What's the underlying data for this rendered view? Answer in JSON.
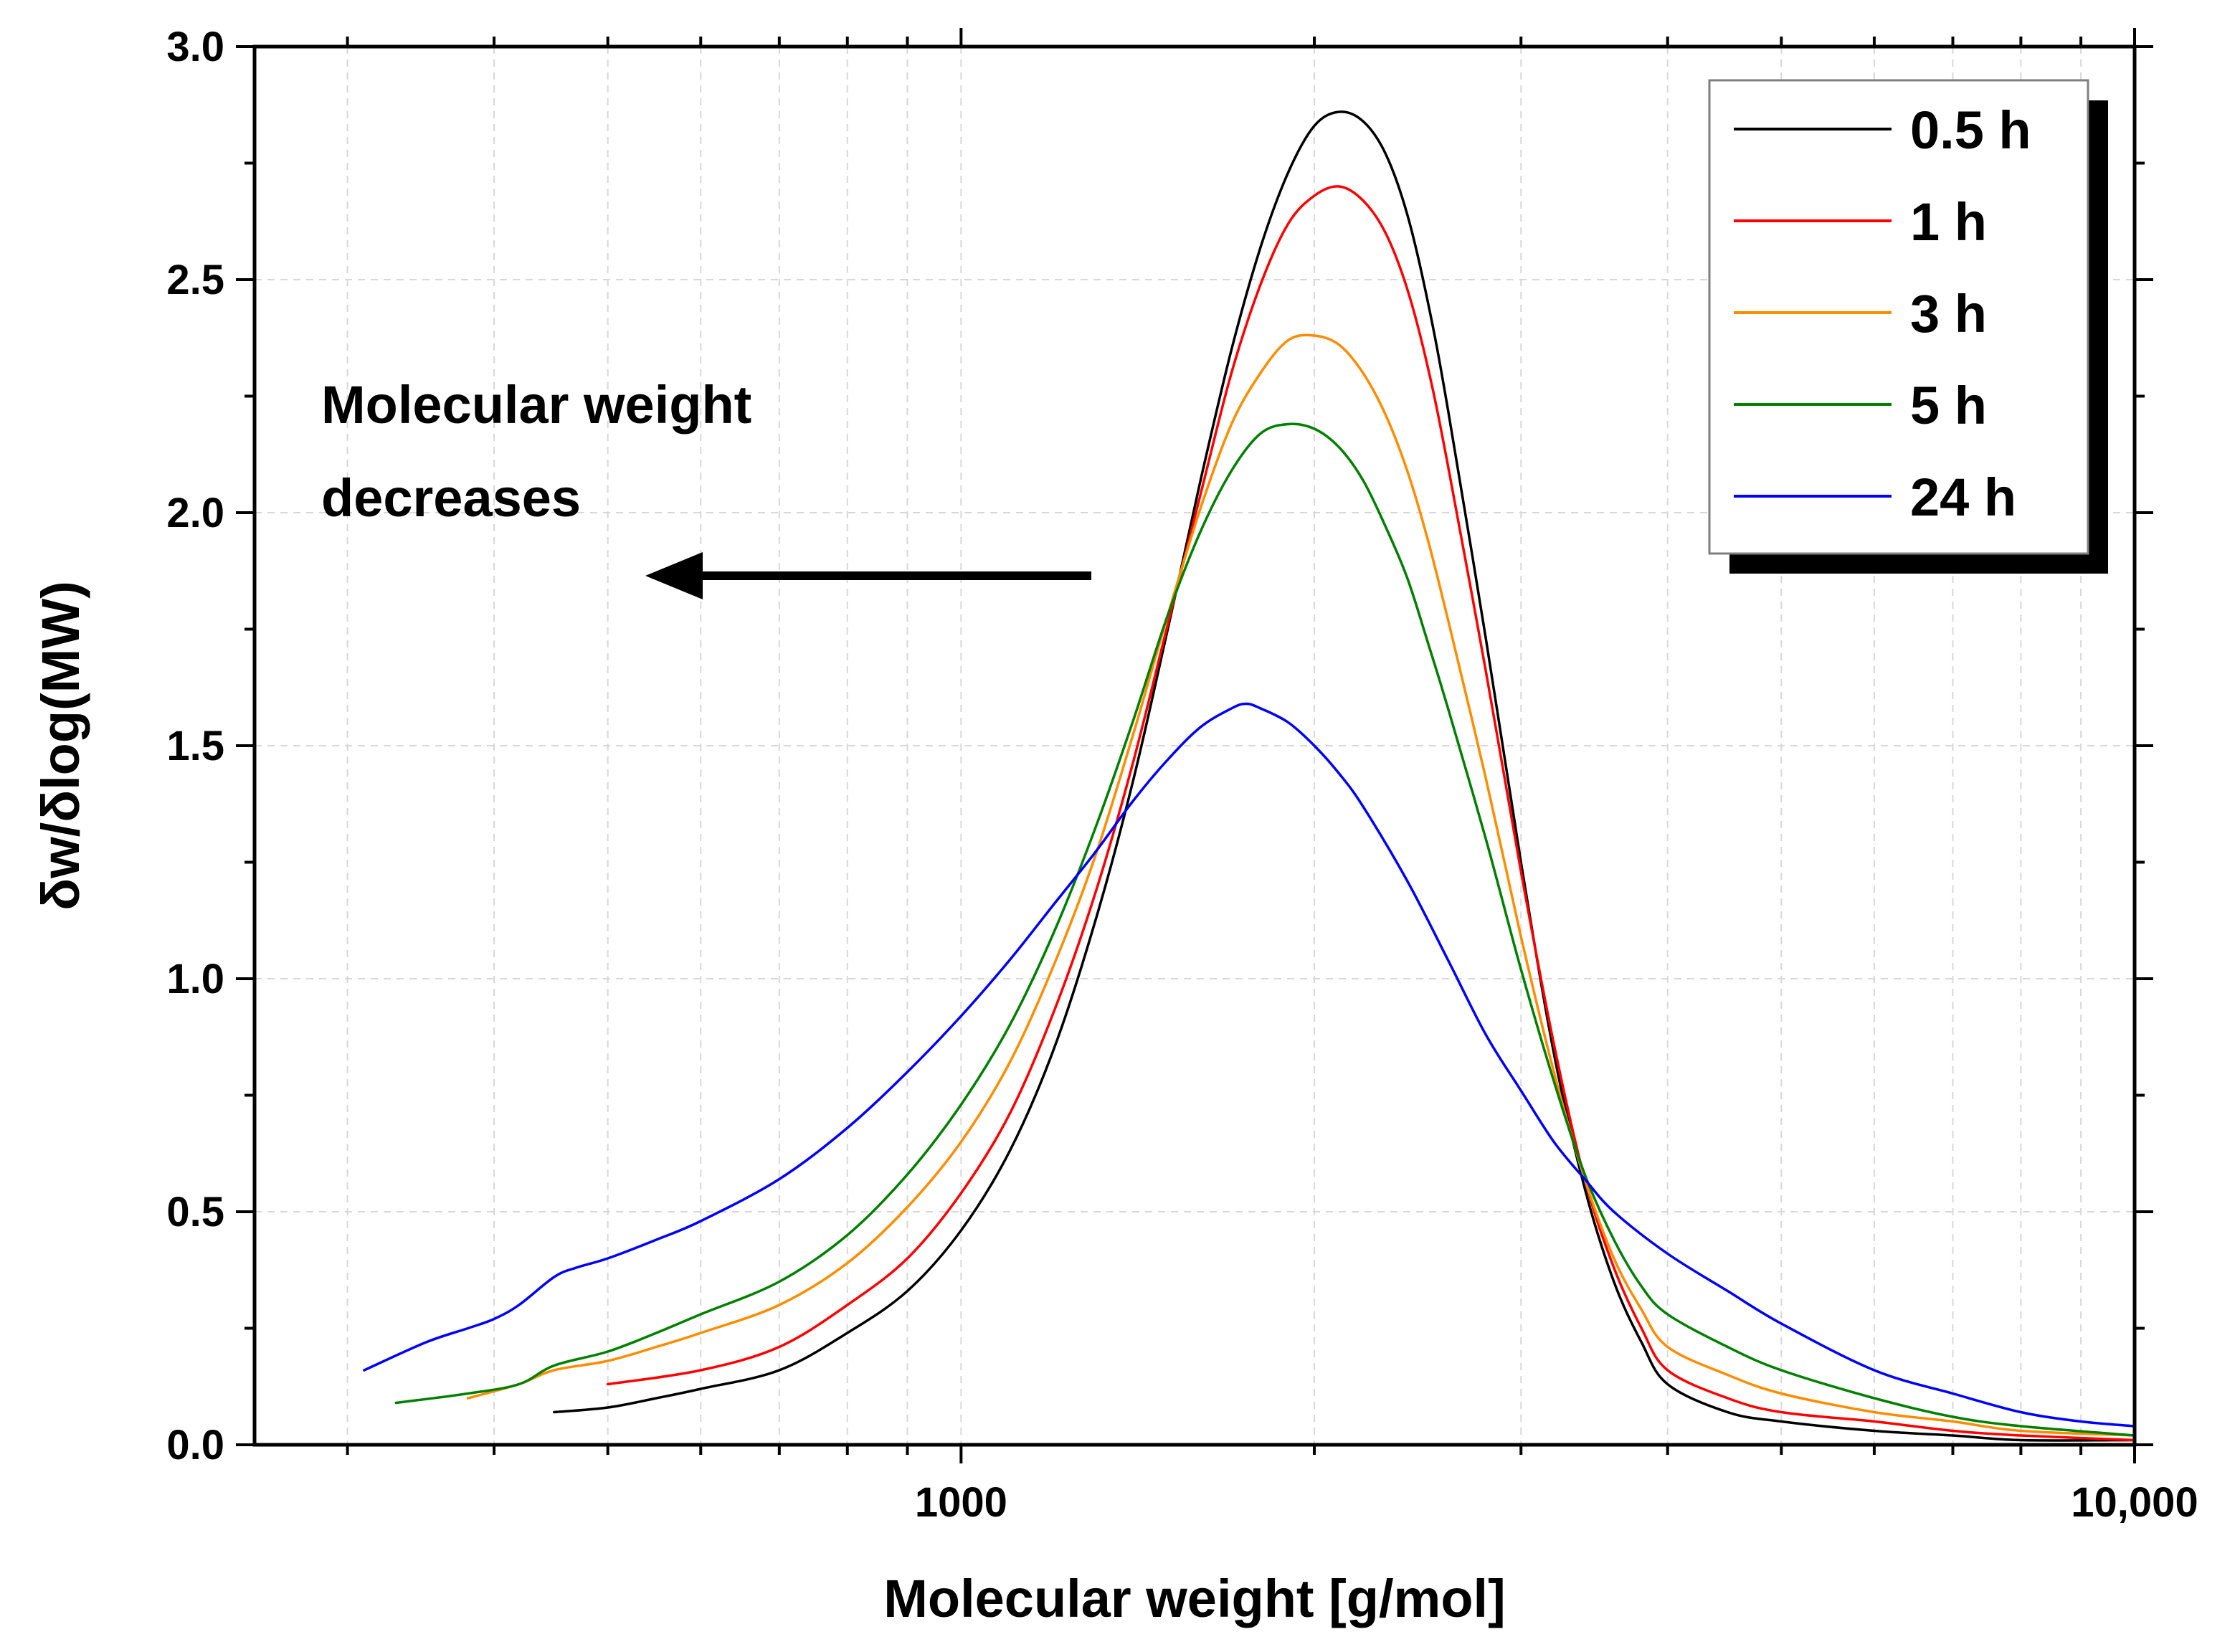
{
  "chart_data": {
    "type": "line",
    "xlabel": "Molecular weight [g/mol]",
    "ylabel": "δw/δlog(MW)",
    "x_scale": "log",
    "xlim": [
      250,
      10000
    ],
    "ylim": [
      0,
      3.0
    ],
    "x_tick_labels": [
      {
        "value": 1000,
        "label": "1000"
      },
      {
        "value": 10000,
        "label": "10,000"
      }
    ],
    "y_ticks": [
      {
        "value": 0.0,
        "label": "0.0"
      },
      {
        "value": 0.5,
        "label": "0.5"
      },
      {
        "value": 1.0,
        "label": "1.0"
      },
      {
        "value": 1.5,
        "label": "1.5"
      },
      {
        "value": 2.0,
        "label": "2.0"
      },
      {
        "value": 2.5,
        "label": "2.5"
      },
      {
        "value": 3.0,
        "label": "3.0"
      }
    ],
    "grid": true,
    "legend_position": "top-right",
    "annotation": {
      "lines": [
        "Molecular weight",
        "decreases"
      ],
      "arrow_direction": "left"
    },
    "series": [
      {
        "name": "0.5 h",
        "color": "#000000",
        "points": [
          [
            450,
            0.07
          ],
          [
            500,
            0.08
          ],
          [
            550,
            0.1
          ],
          [
            600,
            0.12
          ],
          [
            700,
            0.16
          ],
          [
            800,
            0.24
          ],
          [
            900,
            0.33
          ],
          [
            1000,
            0.46
          ],
          [
            1100,
            0.63
          ],
          [
            1200,
            0.85
          ],
          [
            1300,
            1.12
          ],
          [
            1400,
            1.42
          ],
          [
            1500,
            1.75
          ],
          [
            1600,
            2.07
          ],
          [
            1700,
            2.35
          ],
          [
            1800,
            2.57
          ],
          [
            1900,
            2.73
          ],
          [
            2000,
            2.83
          ],
          [
            2100,
            2.86
          ],
          [
            2200,
            2.84
          ],
          [
            2300,
            2.77
          ],
          [
            2400,
            2.64
          ],
          [
            2500,
            2.45
          ],
          [
            2600,
            2.22
          ],
          [
            2800,
            1.73
          ],
          [
            3000,
            1.25
          ],
          [
            3200,
            0.84
          ],
          [
            3400,
            0.55
          ],
          [
            3600,
            0.35
          ],
          [
            3800,
            0.22
          ],
          [
            4000,
            0.13
          ],
          [
            4500,
            0.07
          ],
          [
            5000,
            0.05
          ],
          [
            6000,
            0.03
          ],
          [
            7000,
            0.02
          ],
          [
            8000,
            0.01
          ],
          [
            10000,
            0.01
          ]
        ]
      },
      {
        "name": "1 h",
        "color": "#ff0000",
        "points": [
          [
            500,
            0.13
          ],
          [
            600,
            0.16
          ],
          [
            700,
            0.21
          ],
          [
            800,
            0.3
          ],
          [
            900,
            0.4
          ],
          [
            1000,
            0.54
          ],
          [
            1100,
            0.71
          ],
          [
            1200,
            0.93
          ],
          [
            1300,
            1.18
          ],
          [
            1400,
            1.46
          ],
          [
            1500,
            1.76
          ],
          [
            1600,
            2.04
          ],
          [
            1700,
            2.3
          ],
          [
            1800,
            2.49
          ],
          [
            1900,
            2.62
          ],
          [
            2000,
            2.68
          ],
          [
            2100,
            2.7
          ],
          [
            2200,
            2.67
          ],
          [
            2300,
            2.6
          ],
          [
            2400,
            2.48
          ],
          [
            2500,
            2.31
          ],
          [
            2600,
            2.1
          ],
          [
            2800,
            1.66
          ],
          [
            3000,
            1.23
          ],
          [
            3200,
            0.86
          ],
          [
            3400,
            0.57
          ],
          [
            3600,
            0.38
          ],
          [
            3800,
            0.25
          ],
          [
            4000,
            0.16
          ],
          [
            4500,
            0.1
          ],
          [
            5000,
            0.07
          ],
          [
            6000,
            0.05
          ],
          [
            7000,
            0.03
          ],
          [
            8000,
            0.02
          ],
          [
            10000,
            0.01
          ]
        ]
      },
      {
        "name": "3 h",
        "color": "#ff8c00",
        "points": [
          [
            380,
            0.1
          ],
          [
            420,
            0.13
          ],
          [
            450,
            0.16
          ],
          [
            500,
            0.18
          ],
          [
            550,
            0.21
          ],
          [
            600,
            0.24
          ],
          [
            700,
            0.3
          ],
          [
            800,
            0.39
          ],
          [
            900,
            0.51
          ],
          [
            1000,
            0.65
          ],
          [
            1100,
            0.82
          ],
          [
            1200,
            1.03
          ],
          [
            1300,
            1.26
          ],
          [
            1400,
            1.52
          ],
          [
            1500,
            1.78
          ],
          [
            1600,
            2.01
          ],
          [
            1700,
            2.19
          ],
          [
            1800,
            2.3
          ],
          [
            1900,
            2.37
          ],
          [
            2000,
            2.38
          ],
          [
            2100,
            2.36
          ],
          [
            2200,
            2.3
          ],
          [
            2300,
            2.21
          ],
          [
            2400,
            2.09
          ],
          [
            2500,
            1.94
          ],
          [
            2600,
            1.77
          ],
          [
            2800,
            1.43
          ],
          [
            3000,
            1.09
          ],
          [
            3200,
            0.8
          ],
          [
            3400,
            0.57
          ],
          [
            3600,
            0.4
          ],
          [
            3800,
            0.29
          ],
          [
            4000,
            0.21
          ],
          [
            4500,
            0.15
          ],
          [
            5000,
            0.11
          ],
          [
            6000,
            0.07
          ],
          [
            7000,
            0.05
          ],
          [
            8000,
            0.03
          ],
          [
            10000,
            0.02
          ]
        ]
      },
      {
        "name": "5 h",
        "color": "#008000",
        "points": [
          [
            330,
            0.09
          ],
          [
            380,
            0.11
          ],
          [
            420,
            0.13
          ],
          [
            450,
            0.17
          ],
          [
            500,
            0.2
          ],
          [
            550,
            0.24
          ],
          [
            600,
            0.28
          ],
          [
            700,
            0.35
          ],
          [
            800,
            0.45
          ],
          [
            900,
            0.58
          ],
          [
            1000,
            0.73
          ],
          [
            1100,
            0.9
          ],
          [
            1200,
            1.1
          ],
          [
            1300,
            1.32
          ],
          [
            1400,
            1.55
          ],
          [
            1500,
            1.78
          ],
          [
            1600,
            1.96
          ],
          [
            1700,
            2.09
          ],
          [
            1800,
            2.17
          ],
          [
            1900,
            2.19
          ],
          [
            2000,
            2.18
          ],
          [
            2100,
            2.14
          ],
          [
            2200,
            2.07
          ],
          [
            2300,
            1.97
          ],
          [
            2400,
            1.86
          ],
          [
            2500,
            1.72
          ],
          [
            2600,
            1.58
          ],
          [
            2800,
            1.3
          ],
          [
            3000,
            1.02
          ],
          [
            3200,
            0.78
          ],
          [
            3400,
            0.58
          ],
          [
            3600,
            0.44
          ],
          [
            3800,
            0.34
          ],
          [
            4000,
            0.28
          ],
          [
            4500,
            0.21
          ],
          [
            5000,
            0.16
          ],
          [
            6000,
            0.1
          ],
          [
            7000,
            0.06
          ],
          [
            8000,
            0.04
          ],
          [
            10000,
            0.02
          ]
        ]
      },
      {
        "name": "24 h",
        "color": "#0000ff",
        "points": [
          [
            310,
            0.16
          ],
          [
            350,
            0.22
          ],
          [
            380,
            0.25
          ],
          [
            400,
            0.27
          ],
          [
            420,
            0.3
          ],
          [
            450,
            0.36
          ],
          [
            470,
            0.38
          ],
          [
            500,
            0.4
          ],
          [
            550,
            0.44
          ],
          [
            600,
            0.48
          ],
          [
            700,
            0.57
          ],
          [
            800,
            0.68
          ],
          [
            900,
            0.8
          ],
          [
            1000,
            0.92
          ],
          [
            1100,
            1.04
          ],
          [
            1200,
            1.16
          ],
          [
            1300,
            1.27
          ],
          [
            1400,
            1.38
          ],
          [
            1500,
            1.47
          ],
          [
            1600,
            1.54
          ],
          [
            1700,
            1.58
          ],
          [
            1750,
            1.59
          ],
          [
            1800,
            1.58
          ],
          [
            1900,
            1.55
          ],
          [
            2000,
            1.5
          ],
          [
            2100,
            1.44
          ],
          [
            2200,
            1.37
          ],
          [
            2400,
            1.21
          ],
          [
            2600,
            1.04
          ],
          [
            2800,
            0.88
          ],
          [
            3000,
            0.76
          ],
          [
            3200,
            0.65
          ],
          [
            3400,
            0.57
          ],
          [
            3600,
            0.5
          ],
          [
            4000,
            0.41
          ],
          [
            4500,
            0.33
          ],
          [
            5000,
            0.26
          ],
          [
            6000,
            0.16
          ],
          [
            7000,
            0.11
          ],
          [
            8000,
            0.07
          ],
          [
            9000,
            0.05
          ],
          [
            10000,
            0.04
          ]
        ]
      }
    ]
  }
}
